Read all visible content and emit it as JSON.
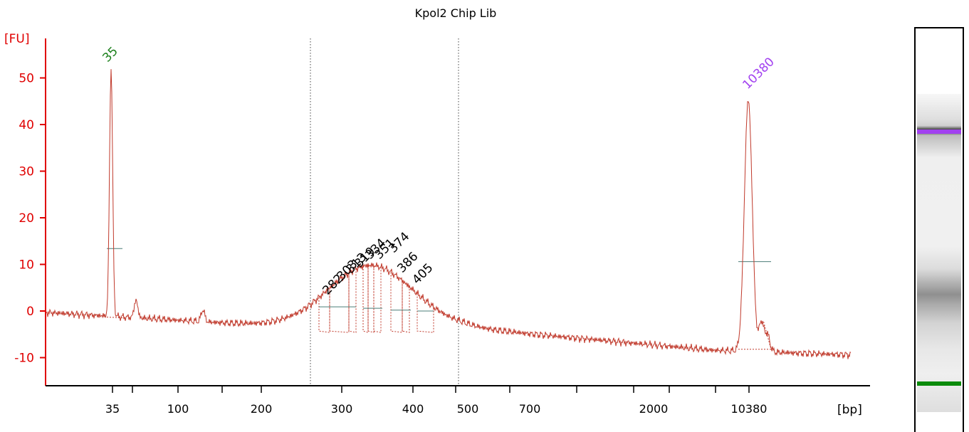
{
  "chart_data": {
    "type": "line",
    "title": "Kpol2 Chip Lib",
    "y_unit": "[FU]",
    "x_unit": "[bp]",
    "ylim": [
      -16,
      60
    ],
    "yticks": [
      -10,
      0,
      10,
      20,
      30,
      40,
      50
    ],
    "ytick_labels": [
      "-10",
      "0",
      "10",
      "20",
      "30",
      "40",
      "50"
    ],
    "xtick_labels": [
      "35",
      "100",
      "200",
      "300",
      "400",
      "500",
      "700",
      "2000",
      "10380"
    ],
    "grid": false,
    "colors": {
      "axis": "#e00000",
      "trace": "#c0392b",
      "lower_marker": "#1a7f1a",
      "upper_marker": "#a241f0",
      "peak_labels": "#000000"
    },
    "peaks": [
      {
        "label": "35",
        "color": "#1a7f1a",
        "value": 52
      },
      {
        "label": "282",
        "color": "#000000"
      },
      {
        "label": "303",
        "color": "#000000"
      },
      {
        "label": "313",
        "color": "#000000"
      },
      {
        "label": "319",
        "color": "#000000"
      },
      {
        "label": "334",
        "color": "#000000"
      },
      {
        "label": "351",
        "color": "#000000"
      },
      {
        "label": "374",
        "color": "#000000"
      },
      {
        "label": "386",
        "color": "#000000"
      },
      {
        "label": "405",
        "color": "#000000"
      },
      {
        "label": "10380",
        "color": "#a241f0",
        "value": 46
      }
    ],
    "region": {
      "from_label": "282",
      "to_label": "405",
      "level_fu": 0.5
    }
  }
}
